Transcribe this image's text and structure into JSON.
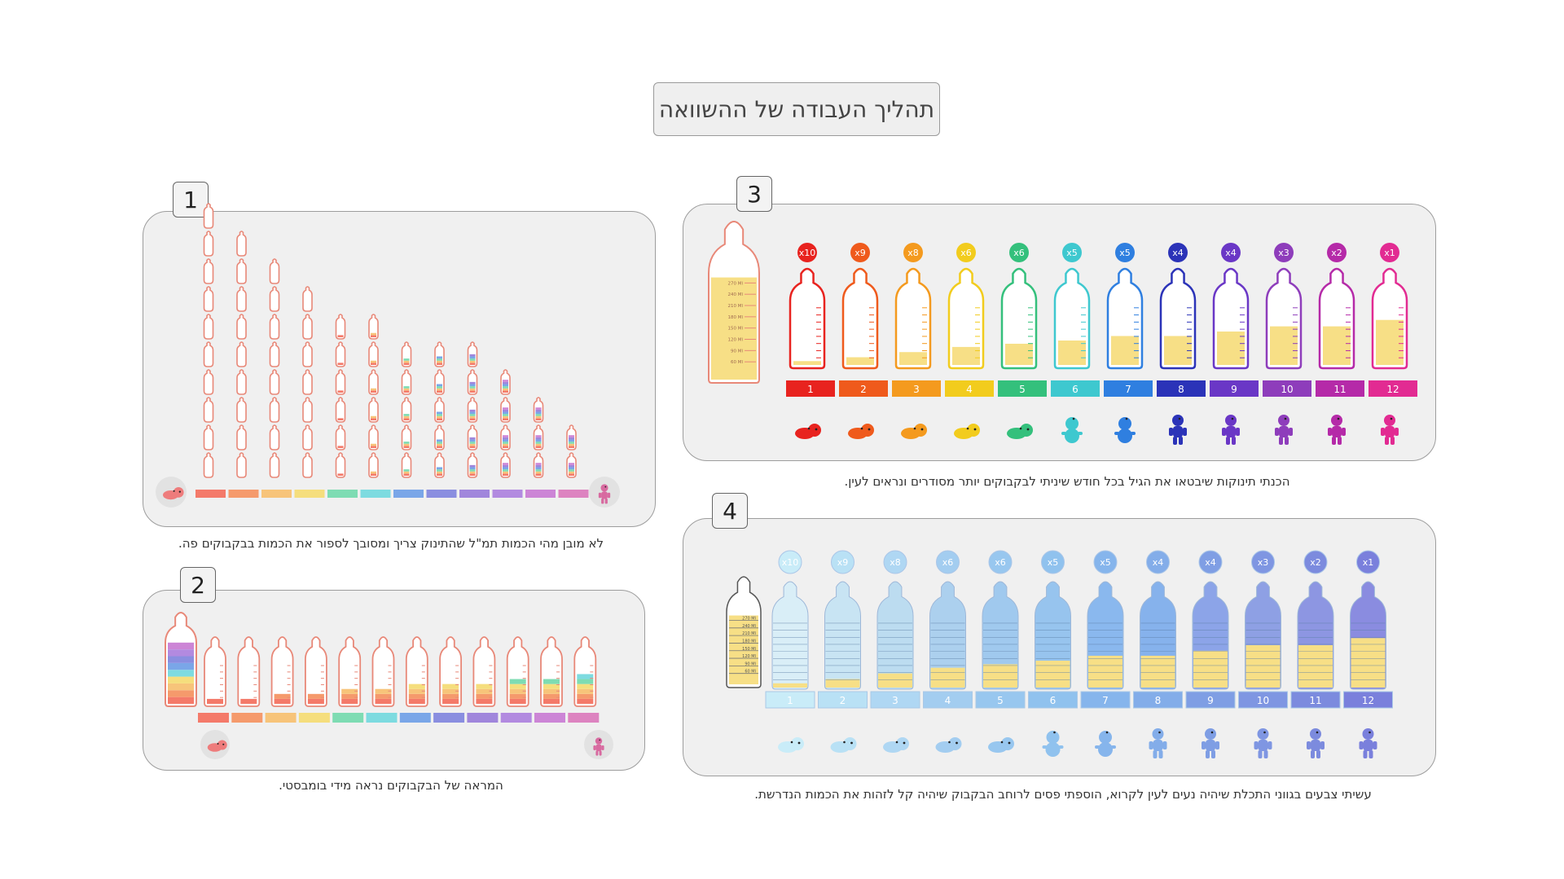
{
  "title": "תהליך העבודה של ההשוואה",
  "panels": [
    {
      "number": "1",
      "caption": "לא מובן מהי הכמות תמ\"ל שהתינוק צריך ומסובך לספור את הכמות בבקבוקים פה."
    },
    {
      "number": "2",
      "caption": "המראה של הבקבוקים נראה מידי בומבסטי."
    },
    {
      "number": "3",
      "caption": "הכנתי תינוקות שיבטאו את הגיל בכל חודש שיניתי לבקבוקים יותר מסודרים ונראים לעין."
    },
    {
      "number": "4",
      "caption": "עשיתי צבעים בגווני התכלת שיהיה נעים לעין לקרוא, הוספתי פסים לרוחב הבקבוק שיהיה קל לזהות את הכמות הנדרשת."
    }
  ],
  "months": [
    "1",
    "2",
    "3",
    "4",
    "5",
    "6",
    "7",
    "8",
    "9",
    "10",
    "11",
    "12"
  ],
  "multipliers": [
    "x10",
    "x9",
    "x8",
    "x6",
    "x6",
    "x5",
    "x5",
    "x4",
    "x4",
    "x3",
    "x2",
    "x1"
  ],
  "scale_labels": [
    "270 Ml",
    "240 Ml",
    "210 Ml",
    "180 Ml",
    "150 Ml",
    "120 Ml",
    "90 Ml",
    "60 Ml"
  ],
  "panel1_bottle_counts": [
    10,
    9,
    8,
    7,
    6,
    6,
    5,
    5,
    5,
    4,
    3,
    2
  ],
  "fill_fractions": [
    0.06,
    0.12,
    0.2,
    0.28,
    0.33,
    0.38,
    0.45,
    0.45,
    0.52,
    0.6,
    0.6,
    0.7
  ],
  "colors": {
    "rainbow": [
      "#e8231f",
      "#ef5a1c",
      "#f49a1e",
      "#f2cc1d",
      "#34c07c",
      "#3ec8cf",
      "#2f7fe0",
      "#2b33b8",
      "#6a37c6",
      "#8e3dbb",
      "#b52aa8",
      "#e22b92"
    ],
    "pastel": [
      "#f47a6a",
      "#f59a6c",
      "#f7c47a",
      "#f5de7d",
      "#7edcb3",
      "#7ddbe0",
      "#7aa6e8",
      "#8a8ee0",
      "#a086dc",
      "#b28ae0",
      "#cc85d6",
      "#dd83c0"
    ],
    "blue_bottles": [
      "#d9eef7",
      "#c8e4f3",
      "#bcdcf0",
      "#acd0ee",
      "#a0c9ee",
      "#97c4ee",
      "#8ab8ee",
      "#86b2ec",
      "#8ca4e8",
      "#8ea0e4",
      "#8d96e2",
      "#8a8ce0"
    ],
    "blue_buttons": [
      "#c9ecf8",
      "#b9e1f5",
      "#afd7f3",
      "#a3cdf0",
      "#98c7ef",
      "#90c2ee",
      "#86b5ec",
      "#83ade9",
      "#7f9ee4",
      "#7f96e2",
      "#7c8bde",
      "#7a80dc"
    ],
    "fill_yellow": "#f7df86",
    "bottle_outline": "#e88878"
  }
}
